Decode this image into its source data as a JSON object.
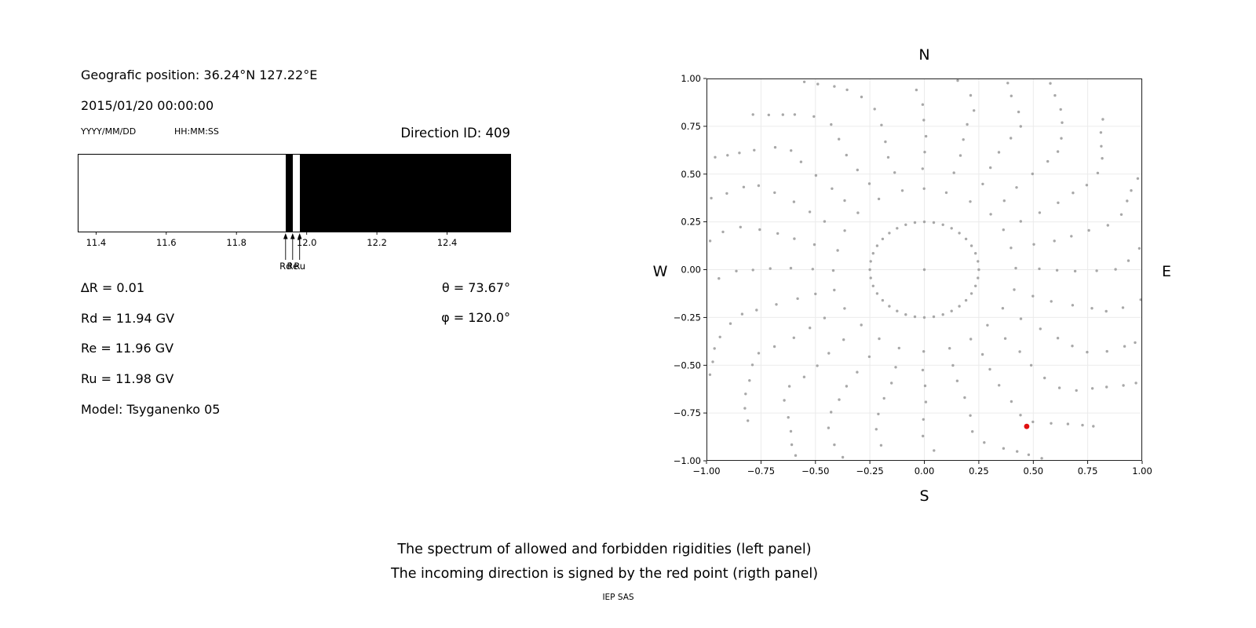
{
  "header": {
    "geo_position": "Geografic position: 36.24°N 127.22°E",
    "datetime": "2015/01/20 00:00:00",
    "date_format_label": "YYYY/MM/DD",
    "time_format_label": "HH:MM:SS",
    "direction_id": "Direction ID: 409"
  },
  "left_panel": {
    "delta_r": "∆R = 0.01",
    "rd": "Rd = 11.94 GV",
    "re": "Re = 11.96 GV",
    "ru": "Ru = 11.98 GV",
    "model": "Model: Tsyganenko 05",
    "theta": "θ = 73.67°",
    "phi": "φ = 120.0°"
  },
  "caption": {
    "line1": "The spectrum of allowed and forbidden rigidities (left panel)",
    "line2": "The incoming direction is signed by the red point (rigth panel)",
    "credit": "IEP SAS"
  },
  "chart_data": [
    {
      "type": "bar",
      "subtype": "rigidity-spectrum",
      "x_range": [
        11.35,
        12.58
      ],
      "x_ticks": [
        {
          "v": 11.4,
          "label": "11.4"
        },
        {
          "v": 11.6,
          "label": "11.6"
        },
        {
          "v": 11.8,
          "label": "11.8"
        },
        {
          "v": 12.0,
          "label": "12.0"
        },
        {
          "v": 12.2,
          "label": "12.2"
        },
        {
          "v": 12.4,
          "label": "12.4"
        }
      ],
      "segments": [
        {
          "from": 11.35,
          "to": 11.94,
          "state": "allowed"
        },
        {
          "from": 11.94,
          "to": 11.96,
          "state": "forbidden"
        },
        {
          "from": 11.96,
          "to": 11.98,
          "state": "allowed"
        },
        {
          "from": 11.98,
          "to": 12.58,
          "state": "forbidden"
        }
      ],
      "allowed_color": "#ffffff",
      "forbidden_color": "#000000",
      "markers": [
        {
          "label": "Rd",
          "x": 11.94
        },
        {
          "label": "Re",
          "x": 11.96
        },
        {
          "label": "Ru",
          "x": 11.98
        }
      ],
      "values": {
        "delta_R_GV": 0.01,
        "Rd_GV": 11.94,
        "Re_GV": 11.96,
        "Ru_GV": 11.98,
        "theta_deg": 73.67,
        "phi_deg": 120.0,
        "model": "Tsyganenko 05",
        "direction_id": 409
      }
    },
    {
      "type": "scatter",
      "subtype": "incoming-direction-map",
      "xlim": [
        -1.0,
        1.0
      ],
      "ylim": [
        -1.0,
        1.0
      ],
      "x_ticks": [
        {
          "v": -1.0,
          "label": "−1.00"
        },
        {
          "v": -0.75,
          "label": "−0.75"
        },
        {
          "v": -0.5,
          "label": "−0.50"
        },
        {
          "v": -0.25,
          "label": "−0.25"
        },
        {
          "v": 0.0,
          "label": "0.00"
        },
        {
          "v": 0.25,
          "label": "0.25"
        },
        {
          "v": 0.5,
          "label": "0.50"
        },
        {
          "v": 0.75,
          "label": "0.75"
        },
        {
          "v": 1.0,
          "label": "1.00"
        }
      ],
      "y_ticks": [
        {
          "v": -1.0,
          "label": "−1.00"
        },
        {
          "v": -0.75,
          "label": "−0.75"
        },
        {
          "v": -0.5,
          "label": "−0.50"
        },
        {
          "v": -0.25,
          "label": "−0.25"
        },
        {
          "v": 0.0,
          "label": "0.00"
        },
        {
          "v": 0.25,
          "label": "0.25"
        },
        {
          "v": 0.5,
          "label": "0.50"
        },
        {
          "v": 0.75,
          "label": "0.75"
        },
        {
          "v": 1.0,
          "label": "1.00"
        }
      ],
      "compass": {
        "north": "N",
        "south": "S",
        "west": "W",
        "east": "E"
      },
      "grid": true,
      "dot_color": "#999999",
      "center_point": [
        0,
        0
      ],
      "inner_ring": {
        "radius": 0.25,
        "count": 36
      },
      "spokes": {
        "azimuth_count": 24,
        "azimuth_step_deg": 15,
        "radii": [
          0.42,
          0.52,
          0.61,
          0.7,
          0.79,
          0.87,
          0.94,
          1.0,
          1.045,
          1.09,
          1.13
        ],
        "outer_drift_start": 0.9,
        "outer_drift_deg_per_unit": 60
      },
      "red_point": {
        "x": 0.47,
        "y": -0.82,
        "color": "#e01010",
        "meaning": "incoming direction"
      }
    }
  ]
}
